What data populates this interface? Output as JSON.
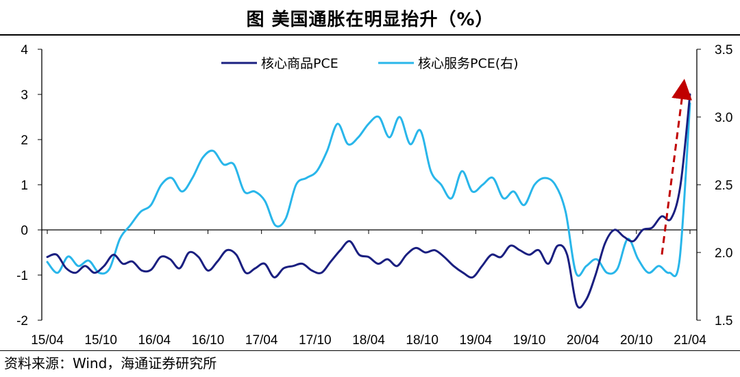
{
  "title": "图  美国通胀在明显抬升（%）",
  "source": "资料来源：Wind，海通证券研究所",
  "chart_data": {
    "type": "line",
    "x_ticks": [
      "15/04",
      "15/10",
      "16/04",
      "16/10",
      "17/04",
      "17/10",
      "18/04",
      "18/10",
      "19/04",
      "19/10",
      "20/04",
      "20/10",
      "21/04"
    ],
    "y_left": {
      "ticks": [
        4,
        3,
        2,
        1,
        0,
        -1,
        -2
      ],
      "range": [
        -2,
        4
      ]
    },
    "y_right": {
      "ticks": [
        "3.5",
        "3.0",
        "2.5",
        "2.0",
        "1.5"
      ],
      "range": [
        1.5,
        3.5
      ]
    },
    "legend_position": "top-center",
    "colors": {
      "goods": "#1a1f80",
      "services": "#29b6ea",
      "arrow": "#c00000"
    },
    "series": [
      {
        "name": "核心商品PCE",
        "axis": "left",
        "values": [
          -0.6,
          -0.55,
          -0.85,
          -0.95,
          -0.8,
          -0.95,
          -0.8,
          -0.55,
          -0.75,
          -0.7,
          -0.9,
          -0.88,
          -0.6,
          -0.65,
          -0.85,
          -0.5,
          -0.6,
          -0.9,
          -0.7,
          -0.45,
          -0.55,
          -0.95,
          -0.85,
          -0.75,
          -1.05,
          -0.85,
          -0.8,
          -0.75,
          -0.9,
          -0.95,
          -0.7,
          -0.45,
          -0.25,
          -0.55,
          -0.6,
          -0.75,
          -0.65,
          -0.8,
          -0.55,
          -0.4,
          -0.5,
          -0.45,
          -0.6,
          -0.8,
          -0.95,
          -1.05,
          -0.8,
          -0.55,
          -0.6,
          -0.35,
          -0.45,
          -0.55,
          -0.45,
          -0.75,
          -0.35,
          -0.55,
          -1.65,
          -1.55,
          -1.0,
          -0.3,
          0.0,
          -0.15,
          -0.25,
          0.0,
          0.05,
          0.3,
          0.25,
          1.0,
          3.0
        ]
      },
      {
        "name": "核心服务PCE(右)",
        "axis": "right",
        "values": [
          1.93,
          1.85,
          1.97,
          1.9,
          1.94,
          1.85,
          1.88,
          2.1,
          2.2,
          2.3,
          2.35,
          2.5,
          2.55,
          2.45,
          2.55,
          2.7,
          2.75,
          2.65,
          2.65,
          2.45,
          2.45,
          2.38,
          2.2,
          2.25,
          2.5,
          2.55,
          2.6,
          2.75,
          2.95,
          2.8,
          2.85,
          2.95,
          3.0,
          2.85,
          3.0,
          2.8,
          2.9,
          2.6,
          2.5,
          2.4,
          2.6,
          2.45,
          2.5,
          2.55,
          2.4,
          2.45,
          2.35,
          2.5,
          2.55,
          2.5,
          2.3,
          1.85,
          1.9,
          1.95,
          1.85,
          1.88,
          2.1,
          1.95,
          1.85,
          1.9,
          1.85,
          1.95,
          3.1
        ]
      }
    ]
  }
}
